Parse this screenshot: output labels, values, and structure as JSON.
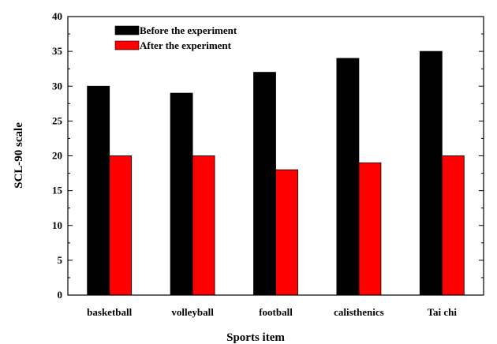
{
  "chart_data": {
    "type": "bar",
    "categories": [
      "basketball",
      "volleyball",
      "football",
      "calisthenics",
      "Tai chi"
    ],
    "series": [
      {
        "name": "Before the experiment",
        "color": "#000000",
        "values": [
          30,
          29,
          32,
          34,
          35
        ]
      },
      {
        "name": "After the experiment",
        "color": "#ff0000",
        "values": [
          20,
          20,
          18,
          19,
          20
        ]
      }
    ],
    "xlabel": "Sports item",
    "ylabel": "SCL-90 scale",
    "ylim": [
      0,
      40
    ],
    "yticks": [
      "0",
      "5",
      "10",
      "15",
      "20",
      "25",
      "30",
      "35",
      "40"
    ],
    "grid": false,
    "legend_position": "top-left"
  }
}
